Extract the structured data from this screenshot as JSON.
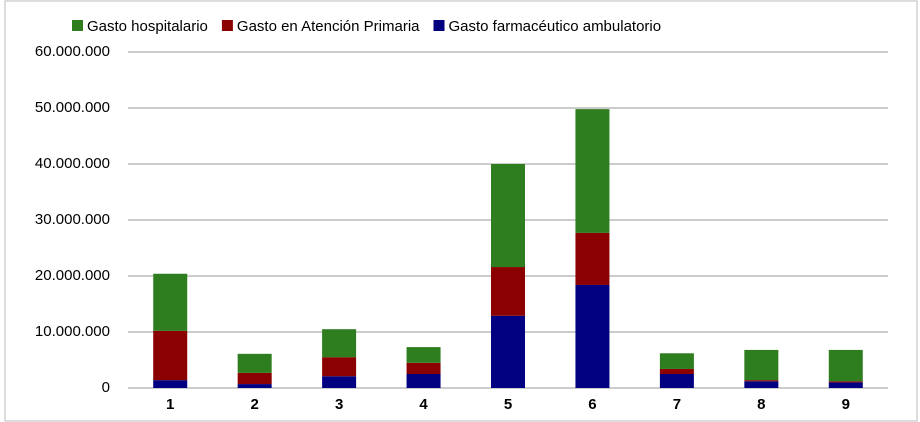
{
  "chart_data": {
    "type": "stacked_bar",
    "categories": [
      "1",
      "2",
      "3",
      "4",
      "5",
      "6",
      "7",
      "8",
      "9"
    ],
    "series": [
      {
        "name": "Gasto hospitalario",
        "color": "#2e7d1e",
        "values": [
          10200000,
          3400000,
          5000000,
          2800000,
          18400000,
          22100000,
          2800000,
          5400000,
          5600000
        ]
      },
      {
        "name": "Gasto en Atención Primaria",
        "color": "#8b0000",
        "values": [
          8800000,
          2000000,
          3400000,
          2000000,
          8700000,
          9300000,
          900000,
          200000,
          200000
        ]
      },
      {
        "name": "Gasto farmacéutico ambulatorio",
        "color": "#000080",
        "values": [
          1400000,
          700000,
          2100000,
          2500000,
          12900000,
          18400000,
          2500000,
          1200000,
          1000000
        ]
      }
    ],
    "ylim": [
      0,
      60000000
    ],
    "yticks": [
      0,
      {
        "value": 10000000,
        "label": "10.000.000"
      },
      {
        "value": 20000000,
        "label": "20.000.000"
      },
      {
        "value": 30000000,
        "label": "30.000.000"
      },
      {
        "value": 40000000,
        "label": "40.000.000"
      },
      {
        "value": 50000000,
        "label": "50.000.000"
      },
      {
        "value": 60000000,
        "label": "60.000.000"
      }
    ],
    "grid": true
  }
}
